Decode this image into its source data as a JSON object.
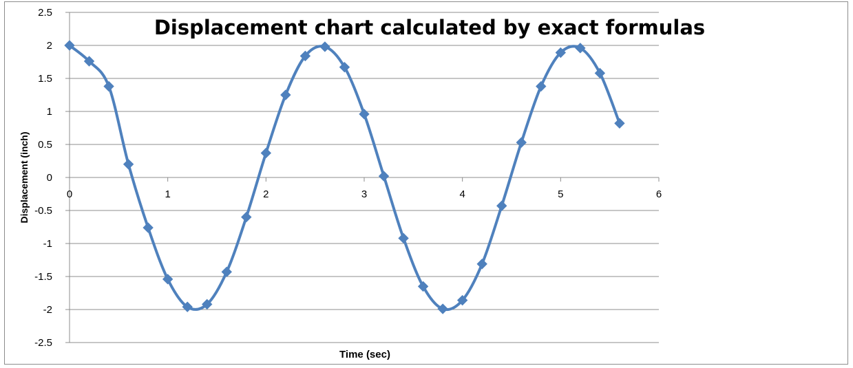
{
  "chart_data": {
    "type": "line",
    "title": "Displacement chart calculated by exact formulas",
    "xlabel": "Time (sec)",
    "ylabel": "Displacement (inch)",
    "xlim": [
      0,
      6
    ],
    "ylim": [
      -2.5,
      2.5
    ],
    "x_ticks": [
      0,
      1,
      2,
      3,
      4,
      5,
      6
    ],
    "y_ticks": [
      2.5,
      2,
      1.5,
      1,
      0.5,
      0,
      -0.5,
      -1,
      -1.5,
      -2,
      -2.5
    ],
    "grid": true,
    "legend": "none",
    "line_color": "#4f81bd",
    "marker": "diamond",
    "series": [
      {
        "x": [
          0,
          0.2,
          0.4,
          0.6,
          0.8,
          1.0,
          1.2,
          1.4,
          1.6,
          1.8,
          2.0,
          2.2,
          2.4,
          2.6,
          2.8,
          3.0,
          3.2,
          3.4,
          3.6,
          3.8,
          4.0,
          4.2,
          4.4,
          4.6,
          4.8,
          5.0,
          5.2,
          5.4,
          5.6
        ],
        "y": [
          2.0,
          1.76,
          1.38,
          0.2,
          -0.76,
          -1.54,
          -1.96,
          -1.92,
          -1.43,
          -0.6,
          0.37,
          1.25,
          1.84,
          1.98,
          1.67,
          0.96,
          0.02,
          -0.92,
          -1.65,
          -1.99,
          -1.86,
          -1.31,
          -0.43,
          0.53,
          1.38,
          1.89,
          1.96,
          1.58,
          0.82
        ]
      }
    ]
  }
}
